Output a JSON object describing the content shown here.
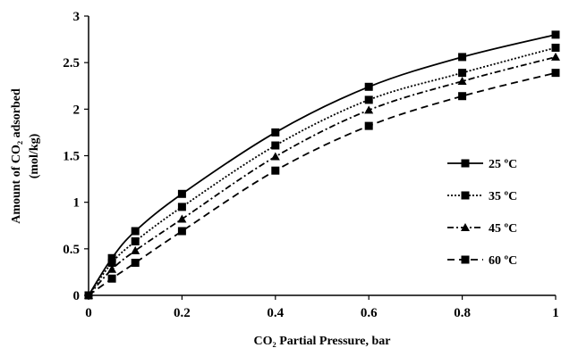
{
  "chart_data": {
    "type": "line",
    "xlabel": "CO₂ Partial Pressure, bar",
    "ylabel_line1": "Amount  of CO₂ adsorbed",
    "ylabel_line2": "(mol/kg)",
    "xlim": [
      0,
      1
    ],
    "ylim": [
      0,
      3
    ],
    "x_ticks": [
      0,
      0.2,
      0.4,
      0.6,
      0.8,
      1
    ],
    "x_tick_labels": [
      "0",
      "0.2",
      "0.4",
      "0.6",
      "0.8",
      "1"
    ],
    "y_ticks": [
      0,
      0.5,
      1,
      1.5,
      2,
      2.5,
      3
    ],
    "y_tick_labels": [
      "0",
      "0.5",
      "1",
      "1.5",
      "2",
      "2.5",
      "3"
    ],
    "grid": false,
    "legend_position": "right",
    "series": [
      {
        "name": "25 ºC",
        "line_style": "solid",
        "marker": "square",
        "x": [
          0,
          0.05,
          0.1,
          0.2,
          0.4,
          0.6,
          0.8,
          1
        ],
        "y": [
          0,
          0.4,
          0.69,
          1.09,
          1.75,
          2.24,
          2.56,
          2.8
        ]
      },
      {
        "name": "35 ºC",
        "line_style": "dotted",
        "marker": "square",
        "x": [
          0,
          0.05,
          0.1,
          0.2,
          0.4,
          0.6,
          0.8,
          1
        ],
        "y": [
          0,
          0.35,
          0.58,
          0.95,
          1.61,
          2.1,
          2.39,
          2.66
        ]
      },
      {
        "name": "45 ºC",
        "line_style": "dashdot",
        "marker": "triangle",
        "x": [
          0,
          0.05,
          0.1,
          0.2,
          0.4,
          0.6,
          0.8,
          1
        ],
        "y": [
          0,
          0.28,
          0.48,
          0.82,
          1.49,
          1.99,
          2.3,
          2.56
        ]
      },
      {
        "name": "60 ºC",
        "line_style": "dashed",
        "marker": "square",
        "x": [
          0,
          0.05,
          0.1,
          0.2,
          0.4,
          0.6,
          0.8,
          1
        ],
        "y": [
          0,
          0.18,
          0.35,
          0.69,
          1.34,
          1.82,
          2.14,
          2.39
        ]
      }
    ]
  }
}
